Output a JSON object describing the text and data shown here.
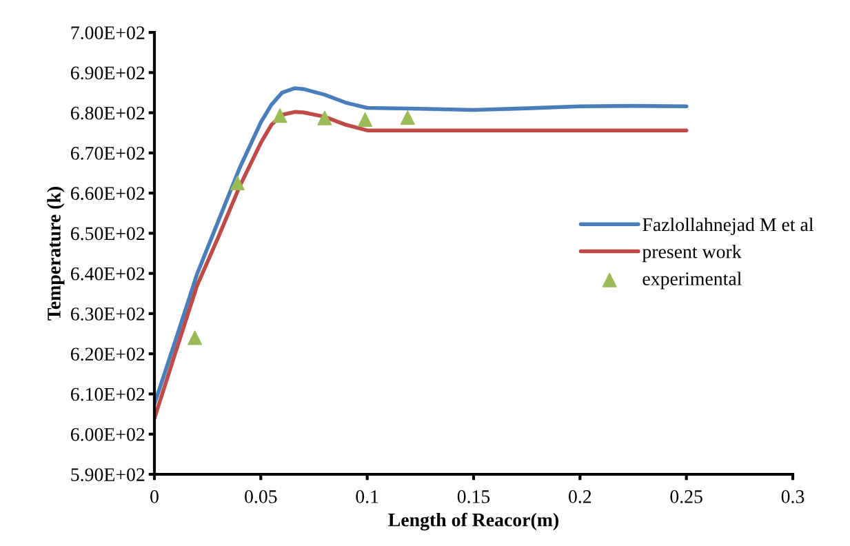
{
  "chart_data": {
    "type": "line",
    "xlabel": "Length of Reacor(m)",
    "ylabel": "Temperature (k)",
    "xlim": [
      0,
      0.3
    ],
    "xticks": [
      0,
      0.05,
      0.1,
      0.15,
      0.2,
      0.25,
      0.3
    ],
    "ylim": [
      590,
      700
    ],
    "yticks": [
      {
        "value": 590,
        "label": "5.90E+02"
      },
      {
        "value": 600,
        "label": "6.00E+02"
      },
      {
        "value": 610,
        "label": "6.10E+02"
      },
      {
        "value": 620,
        "label": "6.20E+02"
      },
      {
        "value": 630,
        "label": "6.30E+02"
      },
      {
        "value": 640,
        "label": "6.40E+02"
      },
      {
        "value": 650,
        "label": "6.50E+02"
      },
      {
        "value": 660,
        "label": "6.60E+02"
      },
      {
        "value": 670,
        "label": "6.70E+02"
      },
      {
        "value": 680,
        "label": "6.80E+02"
      },
      {
        "value": 690,
        "label": "6.90E+02"
      },
      {
        "value": 700,
        "label": "7.00E+02"
      }
    ],
    "grid": false,
    "legend": "right",
    "marker": "none",
    "line_style": "solid",
    "series": [
      {
        "name": "Fazlollahnejad M et al",
        "color": "#4a7ebb",
        "x": [
          0,
          0.01,
          0.02,
          0.03,
          0.04,
          0.05,
          0.055,
          0.06,
          0.066,
          0.07,
          0.08,
          0.09,
          0.1,
          0.125,
          0.15,
          0.175,
          0.2,
          0.225,
          0.25
        ],
        "values": [
          607.5,
          623.5,
          639.8,
          653,
          666.2,
          677.6,
          682,
          685,
          686.1,
          685.9,
          684.5,
          682.5,
          681.2,
          681,
          680.7,
          681.1,
          681.6,
          681.7,
          681.6
        ]
      },
      {
        "name": "present work",
        "color": "#be4b48",
        "x": [
          0,
          0.01,
          0.02,
          0.03,
          0.04,
          0.05,
          0.055,
          0.06,
          0.066,
          0.07,
          0.08,
          0.09,
          0.1,
          0.15,
          0.2,
          0.25
        ],
        "values": [
          603.9,
          620.5,
          636.9,
          649,
          661.6,
          672.5,
          677,
          679.5,
          680.2,
          680.1,
          679,
          677,
          675.6,
          675.6,
          675.6,
          675.6
        ]
      },
      {
        "name": "experimental",
        "type": "scatter",
        "marker": "triangle",
        "color": "#9bbb59",
        "x": [
          0.019,
          0.039,
          0.059,
          0.08,
          0.099,
          0.119
        ],
        "values": [
          624,
          662.5,
          679.3,
          678.7,
          678.3,
          678.8
        ]
      }
    ]
  }
}
